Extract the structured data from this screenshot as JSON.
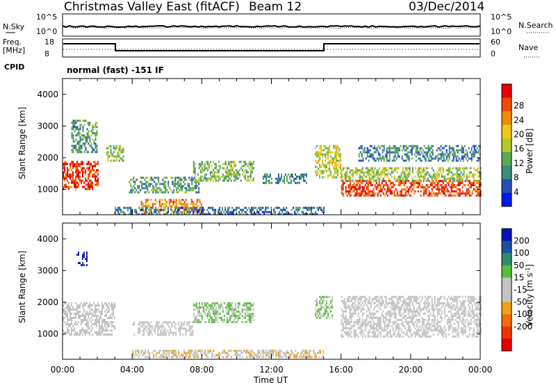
{
  "header": {
    "title": "Christmas Valley East (fitACF)",
    "beam": "Beam 12",
    "date": "03/Dec/2014"
  },
  "noise_panel": {
    "left_label": "N.Sky",
    "right_label": "N.Search",
    "left_ticks": [
      "10^5",
      "10^0"
    ],
    "right_ticks": [
      "10^5",
      "10^0"
    ]
  },
  "freq_panel": {
    "left_label_1": "Freq.",
    "left_label_2": "[MHz]",
    "right_label": "Nave",
    "left_ticks": [
      "18",
      "8"
    ],
    "right_ticks": [
      "60",
      "0"
    ]
  },
  "cpid": {
    "label": "CPID",
    "value": "normal (fast) -151 IF"
  },
  "time_axis": {
    "label": "Time UT",
    "ticks": [
      "00:00",
      "04:00",
      "08:00",
      "12:00",
      "16:00",
      "20:00",
      "00:00"
    ]
  },
  "colors": {
    "power_scale": [
      "#0019e6",
      "#2850b4",
      "#3c8c78",
      "#5aaa50",
      "#b4c828",
      "#f0c814",
      "#f08c0a",
      "#f04b00",
      "#e60000"
    ],
    "velocity_scale": [
      "#0a14b4",
      "#1e50a0",
      "#2d8c6e",
      "#5abe3c",
      "#c3c3c3",
      "#c3c3c3",
      "#f0a014",
      "#f06e0a",
      "#f03200",
      "#e60000"
    ]
  },
  "chart_data": [
    {
      "type": "heatmap",
      "name": "power",
      "ylabel": "Slant Range [km]",
      "xlabel": "Time UT",
      "yticks": [
        "1000",
        "2000",
        "3000",
        "4000"
      ],
      "ylim": [
        200,
        4500
      ],
      "xlim_hours": [
        0,
        24
      ],
      "colorbar_label": "Power [dB]",
      "colorbar_ticks": [
        "4",
        "8",
        "12",
        "16",
        "20",
        "24",
        "28"
      ],
      "colorbar_range": [
        0,
        30
      ],
      "regions": [
        {
          "t": [
            0.0,
            2.0
          ],
          "r": [
            1000,
            1900
          ],
          "level": 26
        },
        {
          "t": [
            0.5,
            2.0
          ],
          "r": [
            2200,
            3200
          ],
          "level": 10
        },
        {
          "t": [
            2.5,
            3.5
          ],
          "r": [
            1900,
            2400
          ],
          "level": 14
        },
        {
          "t": [
            3.8,
            7.8
          ],
          "r": [
            900,
            1400
          ],
          "level": 10
        },
        {
          "t": [
            4.5,
            8.0
          ],
          "r": [
            250,
            700
          ],
          "level": 22
        },
        {
          "t": [
            7.5,
            11.0
          ],
          "r": [
            1300,
            1900
          ],
          "level": 12
        },
        {
          "t": [
            11.5,
            14.0
          ],
          "r": [
            1200,
            1500
          ],
          "level": 9
        },
        {
          "t": [
            3.0,
            15.0
          ],
          "r": [
            250,
            450
          ],
          "level": 7
        },
        {
          "t": [
            14.5,
            16.0
          ],
          "r": [
            1400,
            2400
          ],
          "level": 16
        },
        {
          "t": [
            16.0,
            24.0
          ],
          "r": [
            800,
            1300
          ],
          "level": 26
        },
        {
          "t": [
            16.0,
            24.0
          ],
          "r": [
            1300,
            1700
          ],
          "level": 14
        },
        {
          "t": [
            17.0,
            24.0
          ],
          "r": [
            1900,
            2400
          ],
          "level": 8
        }
      ]
    },
    {
      "type": "heatmap",
      "name": "velocity",
      "ylabel": "Slant Range [km]",
      "xlabel": "Time UT",
      "yticks": [
        "1000",
        "2000",
        "3000",
        "4000"
      ],
      "ylim": [
        200,
        4500
      ],
      "xlim_hours": [
        0,
        24
      ],
      "colorbar_label": "Velocity [m s^-1]",
      "colorbar_ticks": [
        "200",
        "100",
        "50",
        "15",
        "-15",
        "-50",
        "-100",
        "-200"
      ],
      "colorbar_range": [
        -250,
        250
      ],
      "regions": [
        {
          "t": [
            0.0,
            3.0
          ],
          "r": [
            1000,
            2000
          ],
          "level": 0
        },
        {
          "t": [
            0.8,
            1.4
          ],
          "r": [
            3200,
            3600
          ],
          "level": 200
        },
        {
          "t": [
            4.0,
            7.5
          ],
          "r": [
            1000,
            1400
          ],
          "level": 0
        },
        {
          "t": [
            7.5,
            11.0
          ],
          "r": [
            1400,
            2000
          ],
          "level": 50
        },
        {
          "t": [
            4.0,
            15.0
          ],
          "r": [
            250,
            500
          ],
          "level": -40
        },
        {
          "t": [
            14.5,
            15.5
          ],
          "r": [
            1500,
            2200
          ],
          "level": 50
        },
        {
          "t": [
            16.0,
            24.0
          ],
          "r": [
            900,
            2200
          ],
          "level": 0
        }
      ]
    }
  ]
}
